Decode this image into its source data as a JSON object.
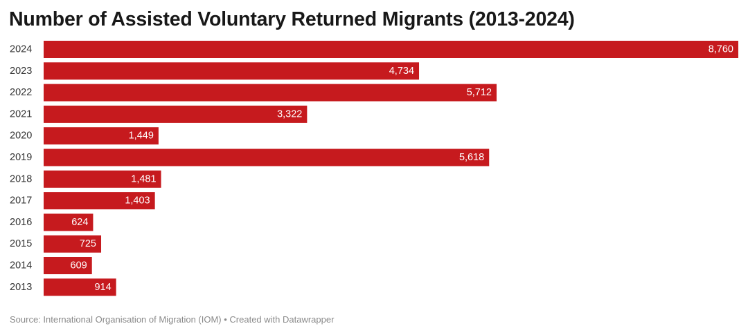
{
  "chart_data": {
    "type": "bar",
    "orientation": "horizontal",
    "title": "Number of Assisted Voluntary Returned Migrants (2013-2024)",
    "categories": [
      "2024",
      "2023",
      "2022",
      "2021",
      "2020",
      "2019",
      "2018",
      "2017",
      "2016",
      "2015",
      "2014",
      "2013"
    ],
    "values": [
      8760,
      4734,
      5712,
      3322,
      1449,
      5618,
      1481,
      1403,
      624,
      725,
      609,
      914
    ],
    "value_labels": [
      "8,760",
      "4,734",
      "5,712",
      "3,322",
      "1,449",
      "5,618",
      "1,481",
      "1,403",
      "624",
      "725",
      "609",
      "914"
    ],
    "xlim": [
      0,
      8760
    ],
    "xlabel": "",
    "ylabel": "",
    "grid": false,
    "bar_color": "#c61a1e"
  },
  "footer": {
    "source": "Source: International Organisation of Migration (IOM) • Created with Datawrapper"
  }
}
